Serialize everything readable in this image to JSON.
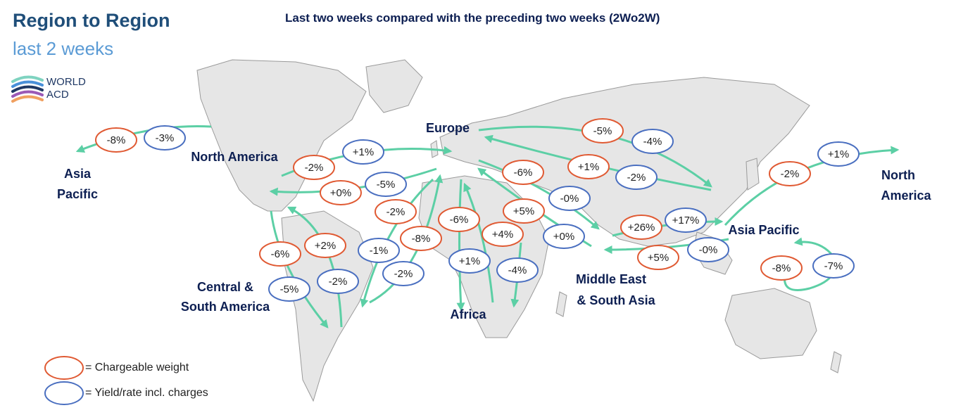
{
  "title": "Region to Region",
  "subtitle": "last 2 weeks",
  "header": "Last two weeks compared with the preceding two weeks (2Wo2W)",
  "logo": {
    "line1": "WORLD",
    "line2": "ACD"
  },
  "colors": {
    "weight": "#e05a33",
    "yield": "#4a6fc0",
    "arrow": "#5ccfa5",
    "land": "#e6e6e6",
    "region": "#0d1f52"
  },
  "regions": {
    "asia_pacific_left": [
      "Asia",
      "Pacific"
    ],
    "north_america_left": "North America",
    "europe": "Europe",
    "asia_pacific_right": "Asia Pacific",
    "north_america_right": [
      "North",
      "America"
    ],
    "central_south_america": [
      "Central &",
      "South America"
    ],
    "africa": "Africa",
    "middle_east": [
      "Middle East",
      "& South Asia"
    ]
  },
  "badges": [
    {
      "kind": "weight",
      "value": "-8%"
    },
    {
      "kind": "yield",
      "value": "-3%"
    },
    {
      "kind": "weight",
      "value": "-2%"
    },
    {
      "kind": "yield",
      "value": "+1%"
    },
    {
      "kind": "weight",
      "value": "+0%"
    },
    {
      "kind": "yield",
      "value": "-5%"
    },
    {
      "kind": "weight",
      "value": "-5%"
    },
    {
      "kind": "yield",
      "value": "-4%"
    },
    {
      "kind": "weight",
      "value": "+1%"
    },
    {
      "kind": "yield",
      "value": "-2%"
    },
    {
      "kind": "weight",
      "value": "-6%"
    },
    {
      "kind": "yield",
      "value": "-0%"
    },
    {
      "kind": "weight",
      "value": "+5%"
    },
    {
      "kind": "yield",
      "value": "+0%"
    },
    {
      "kind": "weight",
      "value": "-2%"
    },
    {
      "kind": "yield",
      "value": "+1%"
    },
    {
      "kind": "weight",
      "value": "+26%"
    },
    {
      "kind": "yield",
      "value": "+17%"
    },
    {
      "kind": "weight",
      "value": "+5%"
    },
    {
      "kind": "yield",
      "value": "-0%"
    },
    {
      "kind": "weight",
      "value": "-8%"
    },
    {
      "kind": "yield",
      "value": "-7%"
    },
    {
      "kind": "weight",
      "value": "-6%"
    },
    {
      "kind": "weight",
      "value": "+2%"
    },
    {
      "kind": "yield",
      "value": "-5%"
    },
    {
      "kind": "yield",
      "value": "-2%"
    },
    {
      "kind": "weight",
      "value": "-2%"
    },
    {
      "kind": "weight",
      "value": "-8%"
    },
    {
      "kind": "yield",
      "value": "-1%"
    },
    {
      "kind": "yield",
      "value": "-2%"
    },
    {
      "kind": "weight",
      "value": "-6%"
    },
    {
      "kind": "yield",
      "value": "+1%"
    },
    {
      "kind": "weight",
      "value": "+4%"
    },
    {
      "kind": "yield",
      "value": "-4%"
    }
  ],
  "legend": {
    "weight_label": "= Chargeable weight",
    "yield_label": "= Yield/rate incl. charges"
  }
}
